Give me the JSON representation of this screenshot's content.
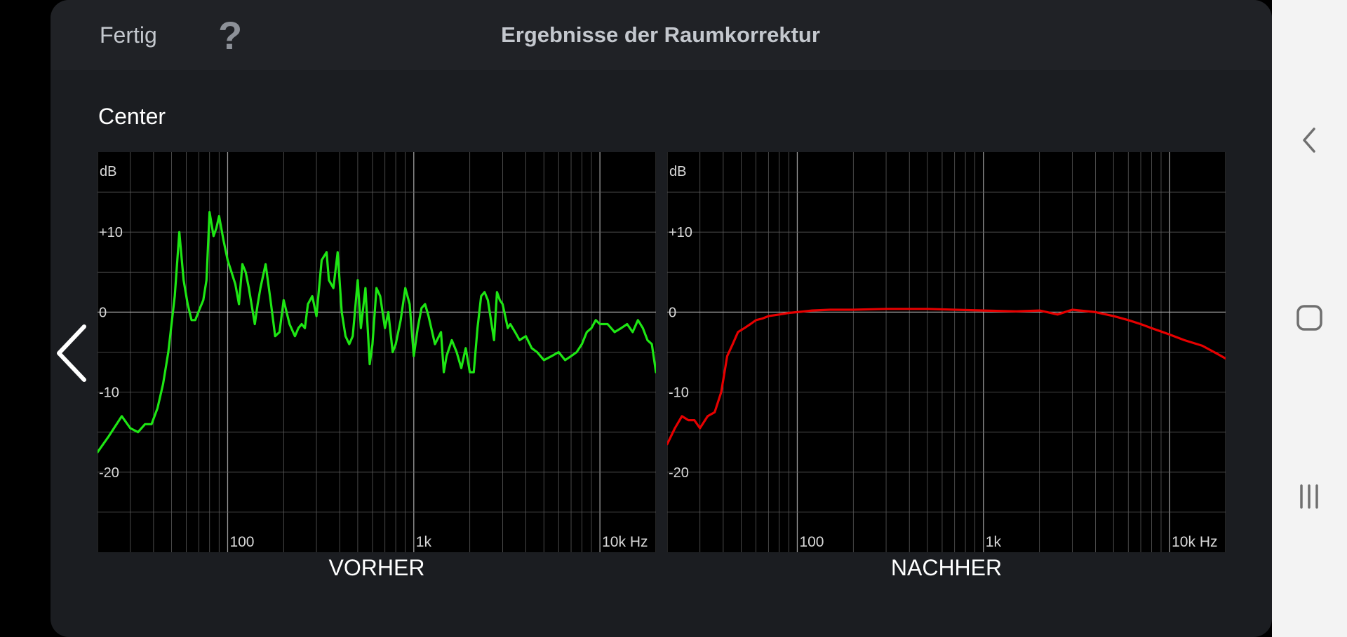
{
  "header": {
    "done_label": "Fertig",
    "help_label": "?",
    "title": "Ergebnisse der Raumkorrektur"
  },
  "channel": "Center",
  "icons": {
    "prev": "chevron-left-icon",
    "nav_back": "back-icon",
    "nav_home": "home-icon",
    "nav_recents": "recents-icon"
  },
  "colors": {
    "before_curve": "#1ee614",
    "after_curve": "#e60000",
    "grid": "#5a5a5a",
    "zero_line": "#a8a8a8"
  },
  "chart_data": [
    {
      "type": "line",
      "caption": "VORHER",
      "ylabel": "dB",
      "x_scale": "log",
      "xlim": [
        20,
        20000
      ],
      "ylim": [
        -30,
        20
      ],
      "x_ticks": [
        {
          "value": 100,
          "label": "100"
        },
        {
          "value": 1000,
          "label": "1k"
        },
        {
          "value": 10000,
          "label": "10k Hz"
        }
      ],
      "y_ticks": [
        {
          "value": 10,
          "label": "+10"
        },
        {
          "value": 0,
          "label": "0"
        },
        {
          "value": -10,
          "label": "-10"
        },
        {
          "value": -20,
          "label": "-20"
        }
      ],
      "grid": true,
      "series": [
        {
          "color": "#1ee614",
          "x": [
            20,
            23,
            27,
            30,
            33,
            36,
            39,
            42,
            45,
            48,
            52,
            55,
            58,
            61,
            64,
            67,
            71,
            74,
            77,
            80,
            84,
            87,
            90,
            95,
            100,
            110,
            115,
            120,
            125,
            130,
            140,
            145,
            150,
            160,
            170,
            180,
            190,
            200,
            215,
            230,
            240,
            250,
            260,
            270,
            285,
            300,
            320,
            340,
            350,
            370,
            390,
            410,
            430,
            450,
            470,
            500,
            520,
            550,
            580,
            600,
            630,
            660,
            700,
            730,
            770,
            800,
            850,
            900,
            950,
            1000,
            1050,
            1100,
            1150,
            1200,
            1300,
            1400,
            1450,
            1500,
            1600,
            1700,
            1800,
            1900,
            2000,
            2100,
            2200,
            2300,
            2400,
            2500,
            2700,
            2800,
            2900,
            3000,
            3200,
            3300,
            3500,
            3700,
            4000,
            4300,
            4600,
            5000,
            5500,
            6000,
            6500,
            7000,
            7500,
            8000,
            8500,
            9000,
            9500,
            10000,
            11000,
            12000,
            13000,
            14000,
            15000,
            16000,
            17000,
            18000,
            19000,
            20000
          ],
          "y": [
            -17.5,
            -15.5,
            -13,
            -14.5,
            -15,
            -14,
            -14,
            -12,
            -9,
            -5,
            2,
            10,
            4,
            1,
            -1,
            -1,
            0.5,
            1.5,
            4,
            12.5,
            9.5,
            10.5,
            12,
            9,
            6.5,
            3.5,
            1,
            6,
            5,
            3,
            -1.5,
            1,
            3,
            6,
            1.5,
            -3,
            -2.5,
            1.5,
            -1.5,
            -3,
            -2,
            -1.5,
            -2,
            1,
            2,
            -0.5,
            6.5,
            7.5,
            4,
            3,
            7.5,
            0,
            -3,
            -4,
            -3,
            4,
            -2,
            3,
            -6.5,
            -4,
            3,
            2,
            -2,
            0,
            -5,
            -4,
            -1,
            3,
            1,
            -5.5,
            -2,
            0.5,
            1,
            -0.5,
            -4,
            -2.5,
            -7.5,
            -5.5,
            -3.5,
            -5,
            -7,
            -4.5,
            -7.5,
            -7.5,
            -2,
            2,
            2.5,
            1.5,
            -3.5,
            2.5,
            1.5,
            1,
            -2,
            -1.5,
            -2.5,
            -3.5,
            -3,
            -4.5,
            -5,
            -6,
            -5.5,
            -5,
            -6,
            -5.5,
            -5,
            -4,
            -2.5,
            -2,
            -1,
            -1.5,
            -1.5,
            -2.5,
            -2,
            -1.5,
            -2.5,
            -1,
            -2,
            -3.5,
            -4,
            -7.5
          ]
        }
      ]
    },
    {
      "type": "line",
      "caption": "NACHHER",
      "ylabel": "dB",
      "x_scale": "log",
      "xlim": [
        20,
        20000
      ],
      "ylim": [
        -30,
        20
      ],
      "x_ticks": [
        {
          "value": 100,
          "label": "100"
        },
        {
          "value": 1000,
          "label": "1k"
        },
        {
          "value": 10000,
          "label": "10k Hz"
        }
      ],
      "y_ticks": [
        {
          "value": 10,
          "label": "+10"
        },
        {
          "value": 0,
          "label": "0"
        },
        {
          "value": -10,
          "label": "-10"
        },
        {
          "value": -20,
          "label": "-20"
        }
      ],
      "grid": true,
      "series": [
        {
          "color": "#e60000",
          "x": [
            20,
            22,
            24,
            26,
            28,
            30,
            33,
            36,
            39,
            42,
            45,
            48,
            52,
            56,
            60,
            65,
            70,
            80,
            90,
            100,
            120,
            150,
            200,
            300,
            400,
            500,
            700,
            1000,
            1500,
            2000,
            2200,
            2500,
            3000,
            4000,
            5000,
            6000,
            7000,
            8000,
            10000,
            12000,
            15000,
            18000,
            20000
          ],
          "y": [
            -16.5,
            -14.5,
            -13,
            -13.5,
            -13.5,
            -14.5,
            -13,
            -12.5,
            -10,
            -5.5,
            -4,
            -2.5,
            -2,
            -1.5,
            -1,
            -0.8,
            -0.5,
            -0.3,
            -0.1,
            0,
            0.2,
            0.3,
            0.3,
            0.4,
            0.4,
            0.4,
            0.3,
            0.2,
            0.1,
            0.2,
            0,
            -0.3,
            0.3,
            0,
            -0.5,
            -1,
            -1.5,
            -2,
            -2.8,
            -3.5,
            -4.2,
            -5.2,
            -5.8
          ]
        }
      ]
    }
  ]
}
